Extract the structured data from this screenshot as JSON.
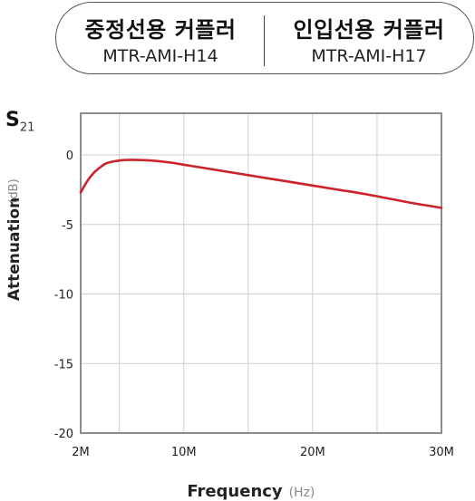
{
  "header": {
    "left": {
      "title": "중정선용 커플러",
      "model": "MTR-AMI-H14"
    },
    "right": {
      "title": "인입선용 커플러",
      "model": "MTR-AMI-H17"
    }
  },
  "sparam": {
    "main": "S",
    "sub": "21"
  },
  "chart_data": {
    "type": "line",
    "xlabel": "Frequency",
    "xunit": "(Hz)",
    "ylabel": "Attenuation",
    "yunit": "(dB)",
    "xlim": [
      2,
      30
    ],
    "ylim": [
      -20,
      3
    ],
    "x_ticks": [
      {
        "value": 2,
        "label": "2M"
      },
      {
        "value": 10,
        "label": "10M"
      },
      {
        "value": 20,
        "label": "20M"
      },
      {
        "value": 30,
        "label": "30M"
      }
    ],
    "y_ticks": [
      {
        "value": 0,
        "label": "0"
      },
      {
        "value": -5,
        "label": "-5"
      },
      {
        "value": -10,
        "label": "-10"
      },
      {
        "value": -15,
        "label": "-15"
      },
      {
        "value": -20,
        "label": "-20"
      }
    ],
    "grid": true,
    "series": [
      {
        "color": "#cc2229",
        "x": [
          2,
          2.5,
          3,
          3.5,
          4,
          5,
          6,
          7.5,
          9,
          10,
          12,
          14,
          16,
          18,
          20,
          22,
          24,
          26,
          28,
          30
        ],
        "y": [
          -2.7,
          -1.9,
          -1.3,
          -0.9,
          -0.6,
          -0.4,
          -0.35,
          -0.4,
          -0.55,
          -0.7,
          -1.0,
          -1.3,
          -1.6,
          -1.9,
          -2.2,
          -2.5,
          -2.8,
          -3.15,
          -3.5,
          -3.8
        ]
      }
    ]
  }
}
